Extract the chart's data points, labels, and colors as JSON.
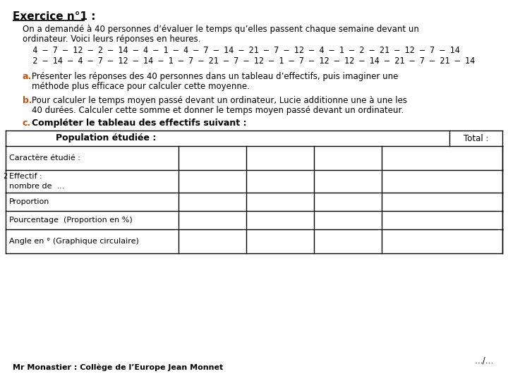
{
  "title": "Exercice n°1 :",
  "bg_color": "#ffffff",
  "text_color": "#000000",
  "paragraph1": "On a demandé à 40 personnes d’évaluer le temps qu’elles passent chaque semaine devant un",
  "paragraph1b": "ordinateur. Voici leurs réponses en heures.",
  "data_row1": "  4 – 7 – 12 – 2 – 14 – 4 – 1 – 4 – 7 – 14 – 21 – 7 – 12 – 4 – 1 – 2 – 21 – 12 – 7 – 14",
  "data_row2": "  2 – 14 – 4 – 7 – 12 – 14 – 1 – 7 – 21 – 7 – 12 – 1 – 7 – 12 – 12 – 14 – 21 – 7 – 21 – 14",
  "label_a": "a.",
  "text_a": "Présenter les réponses des 40 personnes dans un tableau d’effectifs, puis imaginer une",
  "text_a2": "méthode plus efficace pour calculer cette moyenne.",
  "label_b": "b.",
  "text_b": "Pour calculer le temps moyen passé devant un ordinateur, Lucie additionne une à une les",
  "text_b2": "40 durées. Calculer cette somme et donner le temps moyen passé devant un ordinateur.",
  "label_c": "c.",
  "text_c": "Compléter le tableau des effectifs suivant :",
  "accent_color": "#c8500a",
  "table_header_left": "Population étudiée :",
  "table_header_right": "Total :",
  "table_rows": [
    "Caractère étudié :",
    "Effectif :\nnombre de  ...",
    "Proportion",
    "Pourcentage  (Proportion en %)",
    "Angle en ° (Graphique circulaire)"
  ],
  "num_data_cols": 4,
  "footer": "Mr Monastier : Collège de l’Europe Jean Monnet",
  "footer_right": "…/…"
}
